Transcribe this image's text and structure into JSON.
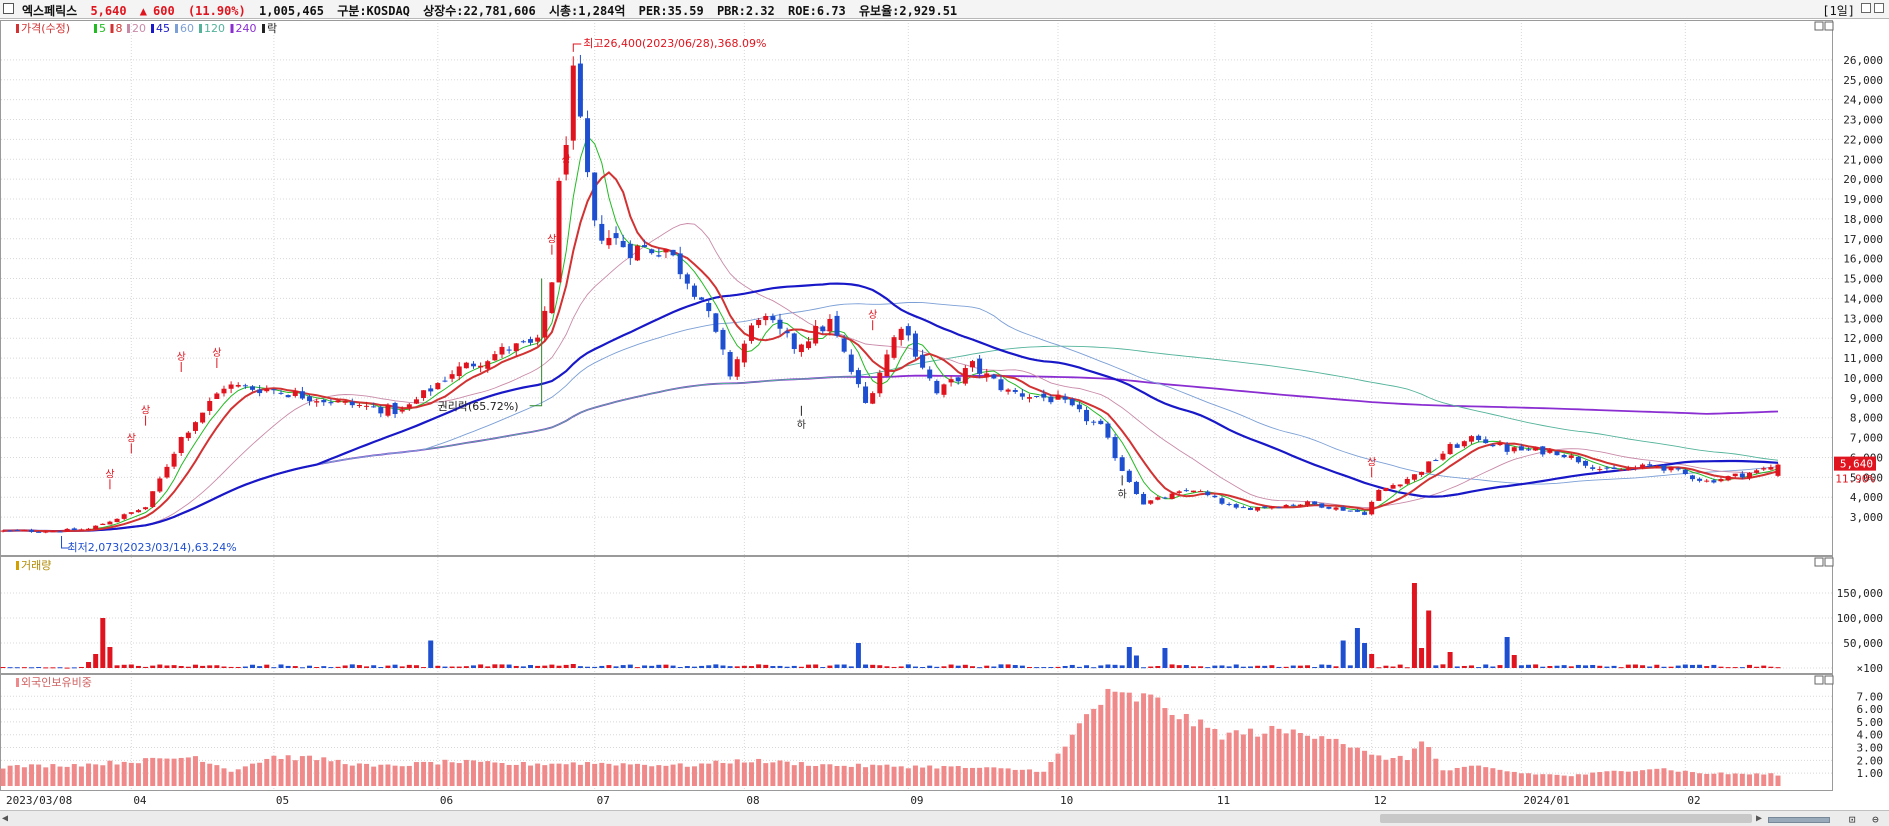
{
  "header": {
    "name": "엑스페릭스",
    "price": "5,640",
    "arrow": "▲",
    "change": "600",
    "change_pct": "(11.90%)",
    "volume": "1,005,465",
    "market": "구분:KOSDAQ",
    "shares": "상장수:22,781,606",
    "mcap": "시총:1,284억",
    "per": "PER:35.59",
    "pbr": "PBR:2.32",
    "roe": "ROE:6.73",
    "float": "유보율:2,929.51",
    "period": "[1일]"
  },
  "colors": {
    "up": "#e0141e",
    "down": "#1f4fd1",
    "ma5": "#22bb22",
    "ma8": "#d23232",
    "ma20": "#c98aa8",
    "ma45": "#1818c8",
    "ma60": "#7b9fd6",
    "ma120": "#53b39a",
    "ma240": "#8a2ed1",
    "foreign": "#f08a8a"
  },
  "chart_data": [
    {
      "type": "candlestick",
      "legend": [
        "가격(수정)",
        "5",
        "8",
        "20",
        "45",
        "60",
        "120",
        "240",
        "락"
      ],
      "x_labels": [
        "2023/03/08",
        "04",
        "05",
        "06",
        "07",
        "08",
        "09",
        "10",
        "11",
        "12",
        "2024/01",
        "02"
      ],
      "y_ticks": [
        3000,
        4000,
        5000,
        6000,
        7000,
        8000,
        9000,
        10000,
        11000,
        12000,
        13000,
        14000,
        15000,
        16000,
        17000,
        18000,
        19000,
        20000,
        21000,
        22000,
        23000,
        24000,
        25000,
        26000
      ],
      "ylim": [
        2100,
        27000
      ],
      "current_price_label": "5,640",
      "current_change_label": "11.90%",
      "annotations": {
        "high": "최고26,400(2023/06/28),368.09%",
        "low": "최저2,073(2023/03/14),63.24%",
        "rights": "권리락(65.72%)",
        "limit_up": "상",
        "limit_down": "하"
      },
      "trend_anchors": [
        [
          "2023/03/08",
          2300
        ],
        [
          "2023/03/17",
          2300
        ],
        [
          "2023/03/24",
          2400
        ],
        [
          "2023/04/05",
          3500
        ],
        [
          "2023/04/12",
          7000
        ],
        [
          "2023/04/20",
          9600
        ],
        [
          "2023/05/01",
          9400
        ],
        [
          "2023/05/15",
          8700
        ],
        [
          "2023/05/25",
          8300
        ],
        [
          "2023/06/05",
          10300
        ],
        [
          "2023/06/15",
          11500
        ],
        [
          "2023/06/21",
          11700
        ],
        [
          "2023/06/23",
          15000
        ],
        [
          "2023/06/26",
          19500
        ],
        [
          "2023/06/28",
          25000
        ],
        [
          "2023/07/03",
          17500
        ],
        [
          "2023/07/10",
          16500
        ],
        [
          "2023/07/17",
          16500
        ],
        [
          "2023/07/24",
          14000
        ],
        [
          "2023/07/28",
          10200
        ],
        [
          "2023/08/03",
          13200
        ],
        [
          "2023/08/10",
          11600
        ],
        [
          "2023/08/17",
          12800
        ],
        [
          "2023/08/24",
          8700
        ],
        [
          "2023/08/31",
          12800
        ],
        [
          "2023/09/07",
          9200
        ],
        [
          "2023/09/14",
          10600
        ],
        [
          "2023/09/21",
          9300
        ],
        [
          "2023/10/02",
          8900
        ],
        [
          "2023/10/10",
          7500
        ],
        [
          "2023/10/13",
          5400
        ],
        [
          "2023/10/18",
          3700
        ],
        [
          "2023/10/27",
          4400
        ],
        [
          "2023/11/06",
          3400
        ],
        [
          "2023/11/20",
          3700
        ],
        [
          "2023/11/30",
          3200
        ],
        [
          "2023/12/04",
          4300
        ],
        [
          "2023/12/11",
          5100
        ],
        [
          "2023/12/18",
          6500
        ],
        [
          "2023/12/22",
          7000
        ],
        [
          "2023/12/28",
          6400
        ],
        [
          "2024/01/08",
          6300
        ],
        [
          "2024/01/17",
          5300
        ],
        [
          "2024/01/26",
          5600
        ],
        [
          "2024/02/06",
          4800
        ],
        [
          "2024/02/15",
          5300
        ],
        [
          "2024/02/20",
          5640
        ]
      ]
    },
    {
      "type": "bar",
      "title": "거래량",
      "y_ticks": [
        100,
        50000,
        100000,
        150000
      ],
      "y_tick_labels": [
        "×100",
        "50,000",
        "100,000",
        "150,000"
      ],
      "ylim": [
        0,
        180000
      ],
      "spikes": [
        [
          "2023/03/24",
          12000
        ],
        [
          "2023/03/27",
          28000
        ],
        [
          "2023/03/28",
          100000
        ],
        [
          "2023/03/29",
          42000
        ],
        [
          "2023/05/31",
          55000
        ],
        [
          "2023/06/28",
          8000
        ],
        [
          "2023/08/23",
          50000
        ],
        [
          "2023/10/16",
          42000
        ],
        [
          "2023/10/17",
          25000
        ],
        [
          "2023/10/23",
          40000
        ],
        [
          "2023/11/27",
          55000
        ],
        [
          "2023/11/29",
          80000
        ],
        [
          "2023/11/30",
          50000
        ],
        [
          "2023/12/01",
          28000
        ],
        [
          "2023/12/11",
          170000
        ],
        [
          "2023/12/12",
          40000
        ],
        [
          "2023/12/13",
          115000
        ],
        [
          "2023/12/18",
          32000
        ],
        [
          "2023/12/28",
          62000
        ],
        [
          "2023/12/29",
          26000
        ]
      ]
    },
    {
      "type": "bar",
      "title": "외국인보유비중",
      "y_ticks": [
        1,
        2,
        3,
        4,
        5,
        6,
        7
      ],
      "y_tick_labels": [
        "1.00",
        "2.00",
        "3.00",
        "4.00",
        "5.00",
        "6.00",
        "7.00"
      ],
      "ylim": [
        0,
        7.8
      ],
      "anchors": [
        [
          "2023/03/08",
          1.5
        ],
        [
          "2023/03/25",
          1.7
        ],
        [
          "2023/04/05",
          2.0
        ],
        [
          "2023/04/14",
          2.3
        ],
        [
          "2023/04/21",
          1.2
        ],
        [
          "2023/05/01",
          2.3
        ],
        [
          "2023/05/10",
          2.1
        ],
        [
          "2023/05/20",
          1.5
        ],
        [
          "2023/06/05",
          1.9
        ],
        [
          "2023/06/15",
          1.7
        ],
        [
          "2023/07/01",
          1.8
        ],
        [
          "2023/07/20",
          1.6
        ],
        [
          "2023/08/01",
          2.0
        ],
        [
          "2023/08/20",
          1.6
        ],
        [
          "2023/09/10",
          1.5
        ],
        [
          "2023/09/28",
          1.2
        ],
        [
          "2023/10/03",
          3.0
        ],
        [
          "2023/10/06",
          5.6
        ],
        [
          "2023/10/11",
          7.0
        ],
        [
          "2023/10/19",
          6.8
        ],
        [
          "2023/10/26",
          5.2
        ],
        [
          "2023/11/02",
          4.0
        ],
        [
          "2023/11/13",
          4.3
        ],
        [
          "2023/11/23",
          4.0
        ],
        [
          "2023/12/01",
          2.3
        ],
        [
          "2023/12/08",
          2.1
        ],
        [
          "2023/12/12",
          3.8
        ],
        [
          "2023/12/15",
          1.2
        ],
        [
          "2023/12/22",
          1.5
        ],
        [
          "2024/01/01",
          1.0
        ],
        [
          "2024/01/10",
          0.8
        ],
        [
          "2024/01/20",
          1.2
        ],
        [
          "2024/01/27",
          1.4
        ],
        [
          "2024/02/05",
          1.0
        ],
        [
          "2024/02/20",
          0.9
        ]
      ]
    }
  ]
}
